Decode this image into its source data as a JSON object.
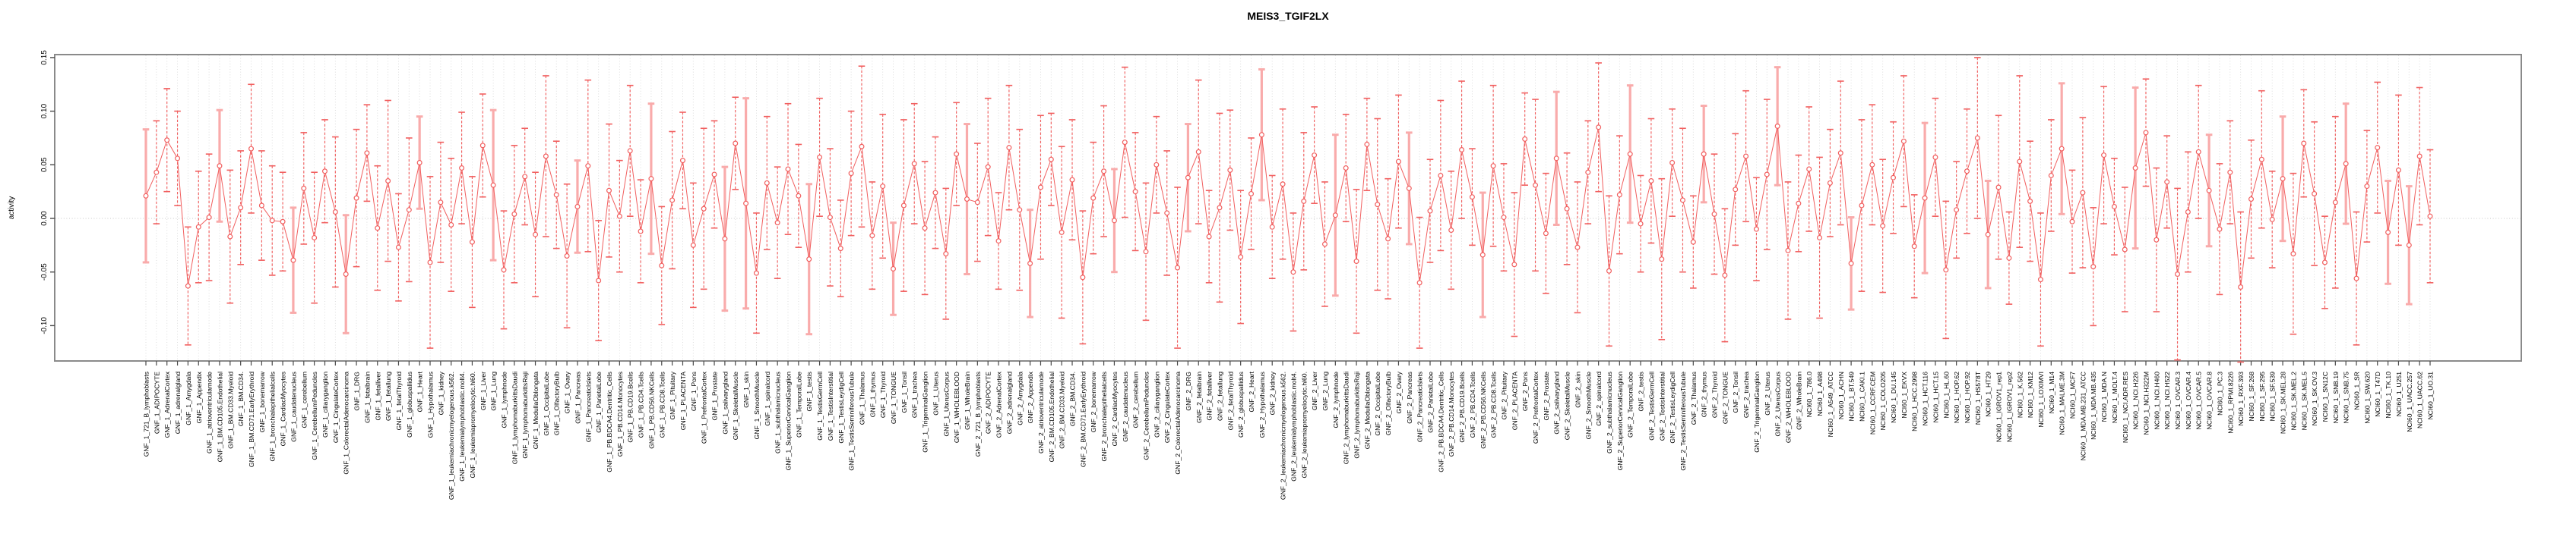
{
  "chart_data": {
    "type": "scatter",
    "style": "points with symmetric error bars, connected by a thin line (R plotCI style)",
    "title": "MEIS3_TGIF2LX",
    "xlabel": "",
    "ylabel": "activity",
    "ylim": [
      -0.134,
      0.154
    ],
    "yticks": [
      -0.1,
      -0.05,
      0.0,
      0.05,
      0.1,
      0.15
    ],
    "ytick_labels": [
      "-0.10",
      "-0.05",
      "0.00",
      "0.05",
      "0.10",
      "0.15"
    ],
    "grid": "vertical dotted gridline at every category; dotted horizontal line at y=0",
    "legend_position": "none",
    "x_tick_label_rotation": -90,
    "colors": {
      "point_and_line": "#f15f5f",
      "error_bar_dark": "#f15f5f",
      "error_bar_light": "#f9abab",
      "gridline": "#d9d9d9",
      "zero_line": "#c8c8c8",
      "frame": "#8a8a8a"
    },
    "categories": [
      "GNF_1_721_B_lymphoblasts",
      "GNF_1_ADIPOCYTE",
      "GNF_1_AdrenalCortex",
      "GNF_1_adrenalgland",
      "GNF_1_Amygdala",
      "GNF_1_Appendix",
      "GNF_1_atrioventricularnode",
      "GNF_1_BM.CD105.Endothelial",
      "GNF_1_BM.CD33.Myeloid",
      "GNF_1_BM.CD34.",
      "GNF_1_BM.CD71.EarlyErythroid",
      "GNF_1_bonemarrow",
      "GNF_1_bronchialepithelialcells",
      "GNF_1_CardiacMyocytes",
      "GNF_1_caudatenucleus",
      "GNF_1_cerebellum",
      "GNF_1_CerebellumPeduncles",
      "GNF_1_ciliaryganglion",
      "GNF_1_CingulateCortex",
      "GNF_1_ColorectalAdenocarcinoma",
      "GNF_1_DRG",
      "GNF_1_fetalbrain",
      "GNF_1_fetalliver",
      "GNF_1_fetallung",
      "GNF_1_fetalThyroid",
      "GNF_1_globuspallidus",
      "GNF_1_Heart",
      "GNF_1_Hypothalamus",
      "GNF_1_kidney",
      "GNF_1_leukemiachronicmyelogenous.k562.",
      "GNF_1_leukemialymphoblastic.molt4.",
      "GNF_1_leukemiapromyelocytic.hl60.",
      "GNF_1_Liver",
      "GNF_1_Lung",
      "GNF_1_lymphnode",
      "GNF_1_lymphomaburkittsDaudi",
      "GNF_1_lymphomaburkittsRaji",
      "GNF_1_MedullaOblongata",
      "GNF_1_OccipitalLobe",
      "GNF_1_OlfactoryBulb",
      "GNF_1_Ovary",
      "GNF_1_Pancreas",
      "GNF_1_PancreaticIslets",
      "GNF_1_ParietalLobe",
      "GNF_1_PB.BDCA4.Dentritic_Cells",
      "GNF_1_PB.CD14.Monocytes",
      "GNF_1_PB.CD19.Bcells",
      "GNF_1_PB.CD4.Tcells",
      "GNF_1_PB.CD56.NKCells",
      "GNF_1_PB.CD8.Tcells",
      "GNF_1_Pituitary",
      "GNF_1_PLACENTA",
      "GNF_1_Pons",
      "GNF_1_PrefrontalCortex",
      "GNF_1_Prostate",
      "GNF_1_salivarygland",
      "GNF_1_SkeletalMuscle",
      "GNF_1_skin",
      "GNF_1_SmoothMuscle",
      "GNF_1_spinalcord",
      "GNF_1_subthalamicnucleus",
      "GNF_1_SuperiorCervicalGanglion",
      "GNF_1_TemporalLobe",
      "GNF_1_testis",
      "GNF_1_TestisGermCell",
      "GNF_1_TestisInterstitial",
      "GNF_1_TestisLeydigCell",
      "GNF_1_TestisSeminiferousTubule",
      "GNF_1_Thalamus",
      "GNF_1_thymus",
      "GNF_1_Thyroid",
      "GNF_1_TONGUE",
      "GNF_1_Tonsil",
      "GNF_1_trachea",
      "GNF_1_TrigeminalGanglion",
      "GNF_1_Uterus",
      "GNF_1_UterusCorpus",
      "GNF_1_WHOLEBLOOD",
      "GNF_1_WholeBrain",
      "GNF_2_721_B_lymphoblasts",
      "GNF_2_ADIPOCYTE",
      "GNF_2_AdrenalCortex",
      "GNF_2_adrenalgland",
      "GNF_2_Amygdala",
      "GNF_2_Appendix",
      "GNF_2_atrioventricularnode",
      "GNF_2_BM.CD105.Endothelial",
      "GNF_2_BM.CD33.Myeloid",
      "GNF_2_BM.CD34.",
      "GNF_2_BM.CD71.EarlyErythroid",
      "GNF_2_bonemarrow",
      "GNF_2_bronchialepithelialcells",
      "GNF_2_CardiacMyocytes",
      "GNF_2_caudatenucleus",
      "GNF_2_cerebellum",
      "GNF_2_CerebellumPeduncles",
      "GNF_2_ciliaryganglion",
      "GNF_2_CingulateCortex",
      "GNF_2_ColorectalAdenocarcinoma",
      "GNF_2_DRG",
      "GNF_2_fetalbrain",
      "GNF_2_fetalliver",
      "GNF_2_fetallung",
      "GNF_2_fetalThyroid",
      "GNF_2_globuspallidus",
      "GNF_2_Heart",
      "GNF_2_Hypothalamus",
      "GNF_2_kidney",
      "GNF_2_leukemiachronicmyelogenous.k562.",
      "GNF_2_leukemialymphoblastic.molt4.",
      "GNF_2_leukemiapromyelocytic.hl60.",
      "GNF_2_Liver",
      "GNF_2_Lung",
      "GNF_2_lymphnode",
      "GNF_2_lymphomaburkittsDaudi",
      "GNF_2_lymphomaburkittsRaji",
      "GNF_2_MedullaOblongata",
      "GNF_2_OccipitalLobe",
      "GNF_2_OlfactoryBulb",
      "GNF_2_Ovary",
      "GNF_2_Pancreas",
      "GNF_2_PancreaticIslets",
      "GNF_2_ParietalLobe",
      "GNF_2_PB.BDCA4.Dentritic_Cells",
      "GNF_2_PB.CD14.Monocytes",
      "GNF_2_PB.CD19.Bcells",
      "GNF_2_PB.CD4.Tcells",
      "GNF_2_PB.CD56.NKCells",
      "GNF_2_PB.CD8.Tcells",
      "GNF_2_Pituitary",
      "GNF_2_PLACENTA",
      "GNF_2_Pons",
      "GNF_2_PrefrontalCortex",
      "GNF_2_Prostate",
      "GNF_2_salivarygland",
      "GNF_2_SkeletalMuscle",
      "GNF_2_skin",
      "GNF_2_SmoothMuscle",
      "GNF_2_spinalcord",
      "GNF_2_subthalamicnucleus",
      "GNF_2_SuperiorCervicalGanglion",
      "GNF_2_TemporalLobe",
      "GNF_2_testis",
      "GNF_2_TestisGermCell",
      "GNF_2_TestisInterstitial",
      "GNF_2_TestisLeydigCell",
      "GNF_2_TestisSeminiferousTubule",
      "GNF_2_Thalamus",
      "GNF_2_thymus",
      "GNF_2_Thyroid",
      "GNF_2_TONGUE",
      "GNF_2_Tonsil",
      "GNF_2_trachea",
      "GNF_2_TrigeminalGanglion",
      "GNF_2_Uterus",
      "GNF_2_UterusCorpus",
      "GNF_2_WHOLEBLOOD",
      "GNF_2_WholeBrain",
      "NCI60_1_786.0",
      "NCI60_1_A498",
      "NCI60_1_A549_ATCC",
      "NCI60_1_ACHN",
      "NCI60_1_BT.549",
      "NCI60_1_CAKI.1",
      "NCI60_1_CCRF.CEM",
      "NCI60_1_COLO205",
      "NCI60_1_DU.145",
      "NCI60_1_EKVX",
      "NCI60_1_HCC.2998",
      "NCI60_1_HCT.116",
      "NCI60_1_HCT.15",
      "NCI60_1_HL.60",
      "NCI60_1_HOP.62",
      "NCI60_1_HOP.92",
      "NCI60_1_HS578T",
      "NCI60_1_HT29",
      "NCI60_1_IGROV1_rep1",
      "NCI60_1_IGROV1_rep2",
      "NCI60_1_K.562",
      "NCI60_1_KM12",
      "NCI60_1_LOXIMVI",
      "NCI60_1_M14",
      "NCI60_1_MALME.3M",
      "NCI60_1_MCF7",
      "NCI60_1_MDA.MB.231_ATCC",
      "NCI60_1_MDA.MB.435",
      "NCI60_1_MDA.N",
      "NCI60_1_MOLT.4",
      "NCI60_1_NCI.ADR.RES",
      "NCI60_1_NCI.H226",
      "NCI60_1_NCI.H322M",
      "NCI60_1_NCI.H460",
      "NCI60_1_NCI.H522",
      "NCI60_1_OVCAR.3",
      "NCI60_1_OVCAR.4",
      "NCI60_1_OVCAR.5",
      "NCI60_1_OVCAR.8",
      "NCI60_1_PC.3",
      "NCI60_1_RPMI.8226",
      "NCI60_1_RXF.393",
      "NCI60_1_SF.268",
      "NCI60_1_SF.295",
      "NCI60_1_SF.539",
      "NCI60_1_SK.MEL.28",
      "NCI60_1_SK.MEL.2",
      "NCI60_1_SK.MEL.5",
      "NCI60_1_SK.OV.3",
      "NCI60_1_SN12C",
      "NCI60_1_SNB.19",
      "NCI60_1_SNB.75",
      "NCI60_1_SR",
      "NCI60_1_SW.620",
      "NCI60_1_T47D",
      "NCI60_1_TK.10",
      "NCI60_1_U251",
      "NCI60_1_UACC.257",
      "NCI60_1_UACC.62",
      "NCI60_1_UO.31"
    ],
    "values": [
      0.021,
      0.043,
      0.073,
      0.056,
      -0.063,
      -0.008,
      0.001,
      0.049,
      -0.017,
      0.01,
      0.065,
      0.012,
      -0.002,
      -0.003,
      -0.039,
      0.028,
      -0.018,
      0.044,
      0.006,
      -0.052,
      0.019,
      0.061,
      -0.009,
      0.035,
      -0.027,
      0.008,
      0.052,
      -0.041,
      0.015,
      -0.006,
      0.047,
      -0.022,
      0.068,
      0.031,
      -0.048,
      0.004,
      0.039,
      -0.015,
      0.058,
      0.022,
      -0.035,
      0.011,
      0.049,
      -0.058,
      0.026,
      0.002,
      0.063,
      -0.012,
      0.037,
      -0.044,
      0.017,
      0.054,
      -0.025,
      0.009,
      0.041,
      -0.019,
      0.07,
      0.014,
      -0.051,
      0.033,
      -0.004,
      0.046,
      0.021,
      -0.038,
      0.057,
      0.001,
      -0.028,
      0.042,
      0.067,
      -0.016,
      0.03,
      -0.047,
      0.012,
      0.051,
      -0.009,
      0.024,
      -0.033,
      0.06,
      0.018,
      0.015,
      0.048,
      -0.021,
      0.066,
      0.008,
      -0.042,
      0.029,
      0.055,
      -0.013,
      0.036,
      -0.055,
      0.019,
      0.044,
      -0.002,
      0.071,
      0.025,
      -0.031,
      0.05,
      0.005,
      -0.046,
      0.038,
      0.062,
      -0.017,
      0.01,
      0.045,
      -0.036,
      0.023,
      0.078,
      -0.008,
      0.032,
      -0.05,
      0.016,
      0.059,
      -0.024,
      0.003,
      0.047,
      -0.04,
      0.069,
      0.013,
      -0.019,
      0.053,
      0.028,
      -0.06,
      0.007,
      0.04,
      -0.011,
      0.064,
      0.02,
      -0.034,
      0.049,
      0.001,
      -0.043,
      0.074,
      0.031,
      -0.014,
      0.056,
      0.009,
      -0.027,
      0.043,
      0.085,
      -0.049,
      0.022,
      0.06,
      -0.005,
      0.035,
      -0.038,
      0.052,
      0.017,
      -0.022,
      0.06,
      0.004,
      -0.053,
      0.027,
      0.058,
      -0.01,
      0.041,
      0.086,
      -0.03,
      0.014,
      0.046,
      -0.018,
      0.033,
      0.061,
      -0.042,
      0.012,
      0.05,
      -0.007,
      0.038,
      0.072,
      -0.026,
      0.019,
      0.057,
      -0.048,
      0.008,
      0.044,
      0.075,
      -0.015,
      0.029,
      -0.037,
      0.053,
      0.016,
      -0.057,
      0.04,
      0.065,
      -0.003,
      0.024,
      -0.045,
      0.059,
      0.011,
      -0.029,
      0.047,
      0.08,
      -0.02,
      0.034,
      -0.052,
      0.006,
      0.062,
      0.026,
      -0.01,
      0.043,
      -0.064,
      0.018,
      0.055,
      -0.001,
      0.037,
      -0.033,
      0.07,
      0.023,
      -0.041,
      0.015,
      0.051,
      -0.056,
      0.03,
      0.066,
      -0.013,
      0.045,
      -0.025,
      0.058,
      0.002
    ],
    "err": [
      0.062,
      0.048,
      0.048,
      0.044,
      0.055,
      0.052,
      0.059,
      0.052,
      0.062,
      0.053,
      0.06,
      0.051,
      0.051,
      0.046,
      0.049,
      0.052,
      0.061,
      0.048,
      0.07,
      0.055,
      0.064,
      0.045,
      0.058,
      0.075,
      0.05,
      0.067,
      0.043,
      0.08,
      0.056,
      0.062,
      0.052,
      0.061,
      0.048,
      0.07,
      0.055,
      0.064,
      0.045,
      0.058,
      0.075,
      0.05,
      0.067,
      0.043,
      0.08,
      0.056,
      0.062,
      0.052,
      0.061,
      0.048,
      0.07,
      0.055,
      0.064,
      0.045,
      0.058,
      0.075,
      0.05,
      0.067,
      0.043,
      0.098,
      0.056,
      0.062,
      0.052,
      0.061,
      0.048,
      0.07,
      0.055,
      0.064,
      0.045,
      0.058,
      0.075,
      0.05,
      0.067,
      0.043,
      0.08,
      0.056,
      0.062,
      0.052,
      0.061,
      0.048,
      0.07,
      0.055,
      0.064,
      0.045,
      0.058,
      0.075,
      0.05,
      0.067,
      0.043,
      0.08,
      0.056,
      0.062,
      0.052,
      0.061,
      0.048,
      0.07,
      0.055,
      0.064,
      0.045,
      0.058,
      0.075,
      0.05,
      0.067,
      0.043,
      0.088,
      0.056,
      0.062,
      0.052,
      0.061,
      0.048,
      0.07,
      0.055,
      0.064,
      0.045,
      0.058,
      0.075,
      0.05,
      0.067,
      0.043,
      0.08,
      0.056,
      0.062,
      0.052,
      0.061,
      0.048,
      0.07,
      0.055,
      0.064,
      0.045,
      0.058,
      0.075,
      0.05,
      0.067,
      0.043,
      0.08,
      0.056,
      0.062,
      0.052,
      0.061,
      0.048,
      0.06,
      0.07,
      0.055,
      0.064,
      0.045,
      0.058,
      0.075,
      0.05,
      0.067,
      0.043,
      0.045,
      0.056,
      0.062,
      0.052,
      0.061,
      0.048,
      0.07,
      0.055,
      0.064,
      0.045,
      0.058,
      0.075,
      0.05,
      0.067,
      0.043,
      0.08,
      0.056,
      0.062,
      0.052,
      0.061,
      0.048,
      0.07,
      0.055,
      0.064,
      0.045,
      0.058,
      0.075,
      0.05,
      0.067,
      0.043,
      0.08,
      0.056,
      0.062,
      0.052,
      0.061,
      0.048,
      0.07,
      0.055,
      0.064,
      0.045,
      0.058,
      0.075,
      0.05,
      0.067,
      0.043,
      0.08,
      0.056,
      0.062,
      0.052,
      0.061,
      0.048,
      0.07,
      0.055,
      0.064,
      0.045,
      0.058,
      0.075,
      0.05,
      0.067,
      0.043,
      0.08,
      0.056,
      0.062,
      0.052,
      0.061,
      0.048,
      0.07,
      0.055,
      0.064,
      0.062
    ],
    "light_bar_indices": [
      0,
      7,
      14,
      19,
      26,
      33,
      41,
      48,
      55,
      57,
      63,
      71,
      78,
      84,
      92,
      99,
      106,
      113,
      120,
      127,
      134,
      141,
      148,
      155,
      162,
      169,
      175,
      182,
      189,
      196,
      203,
      209,
      213,
      215
    ]
  }
}
